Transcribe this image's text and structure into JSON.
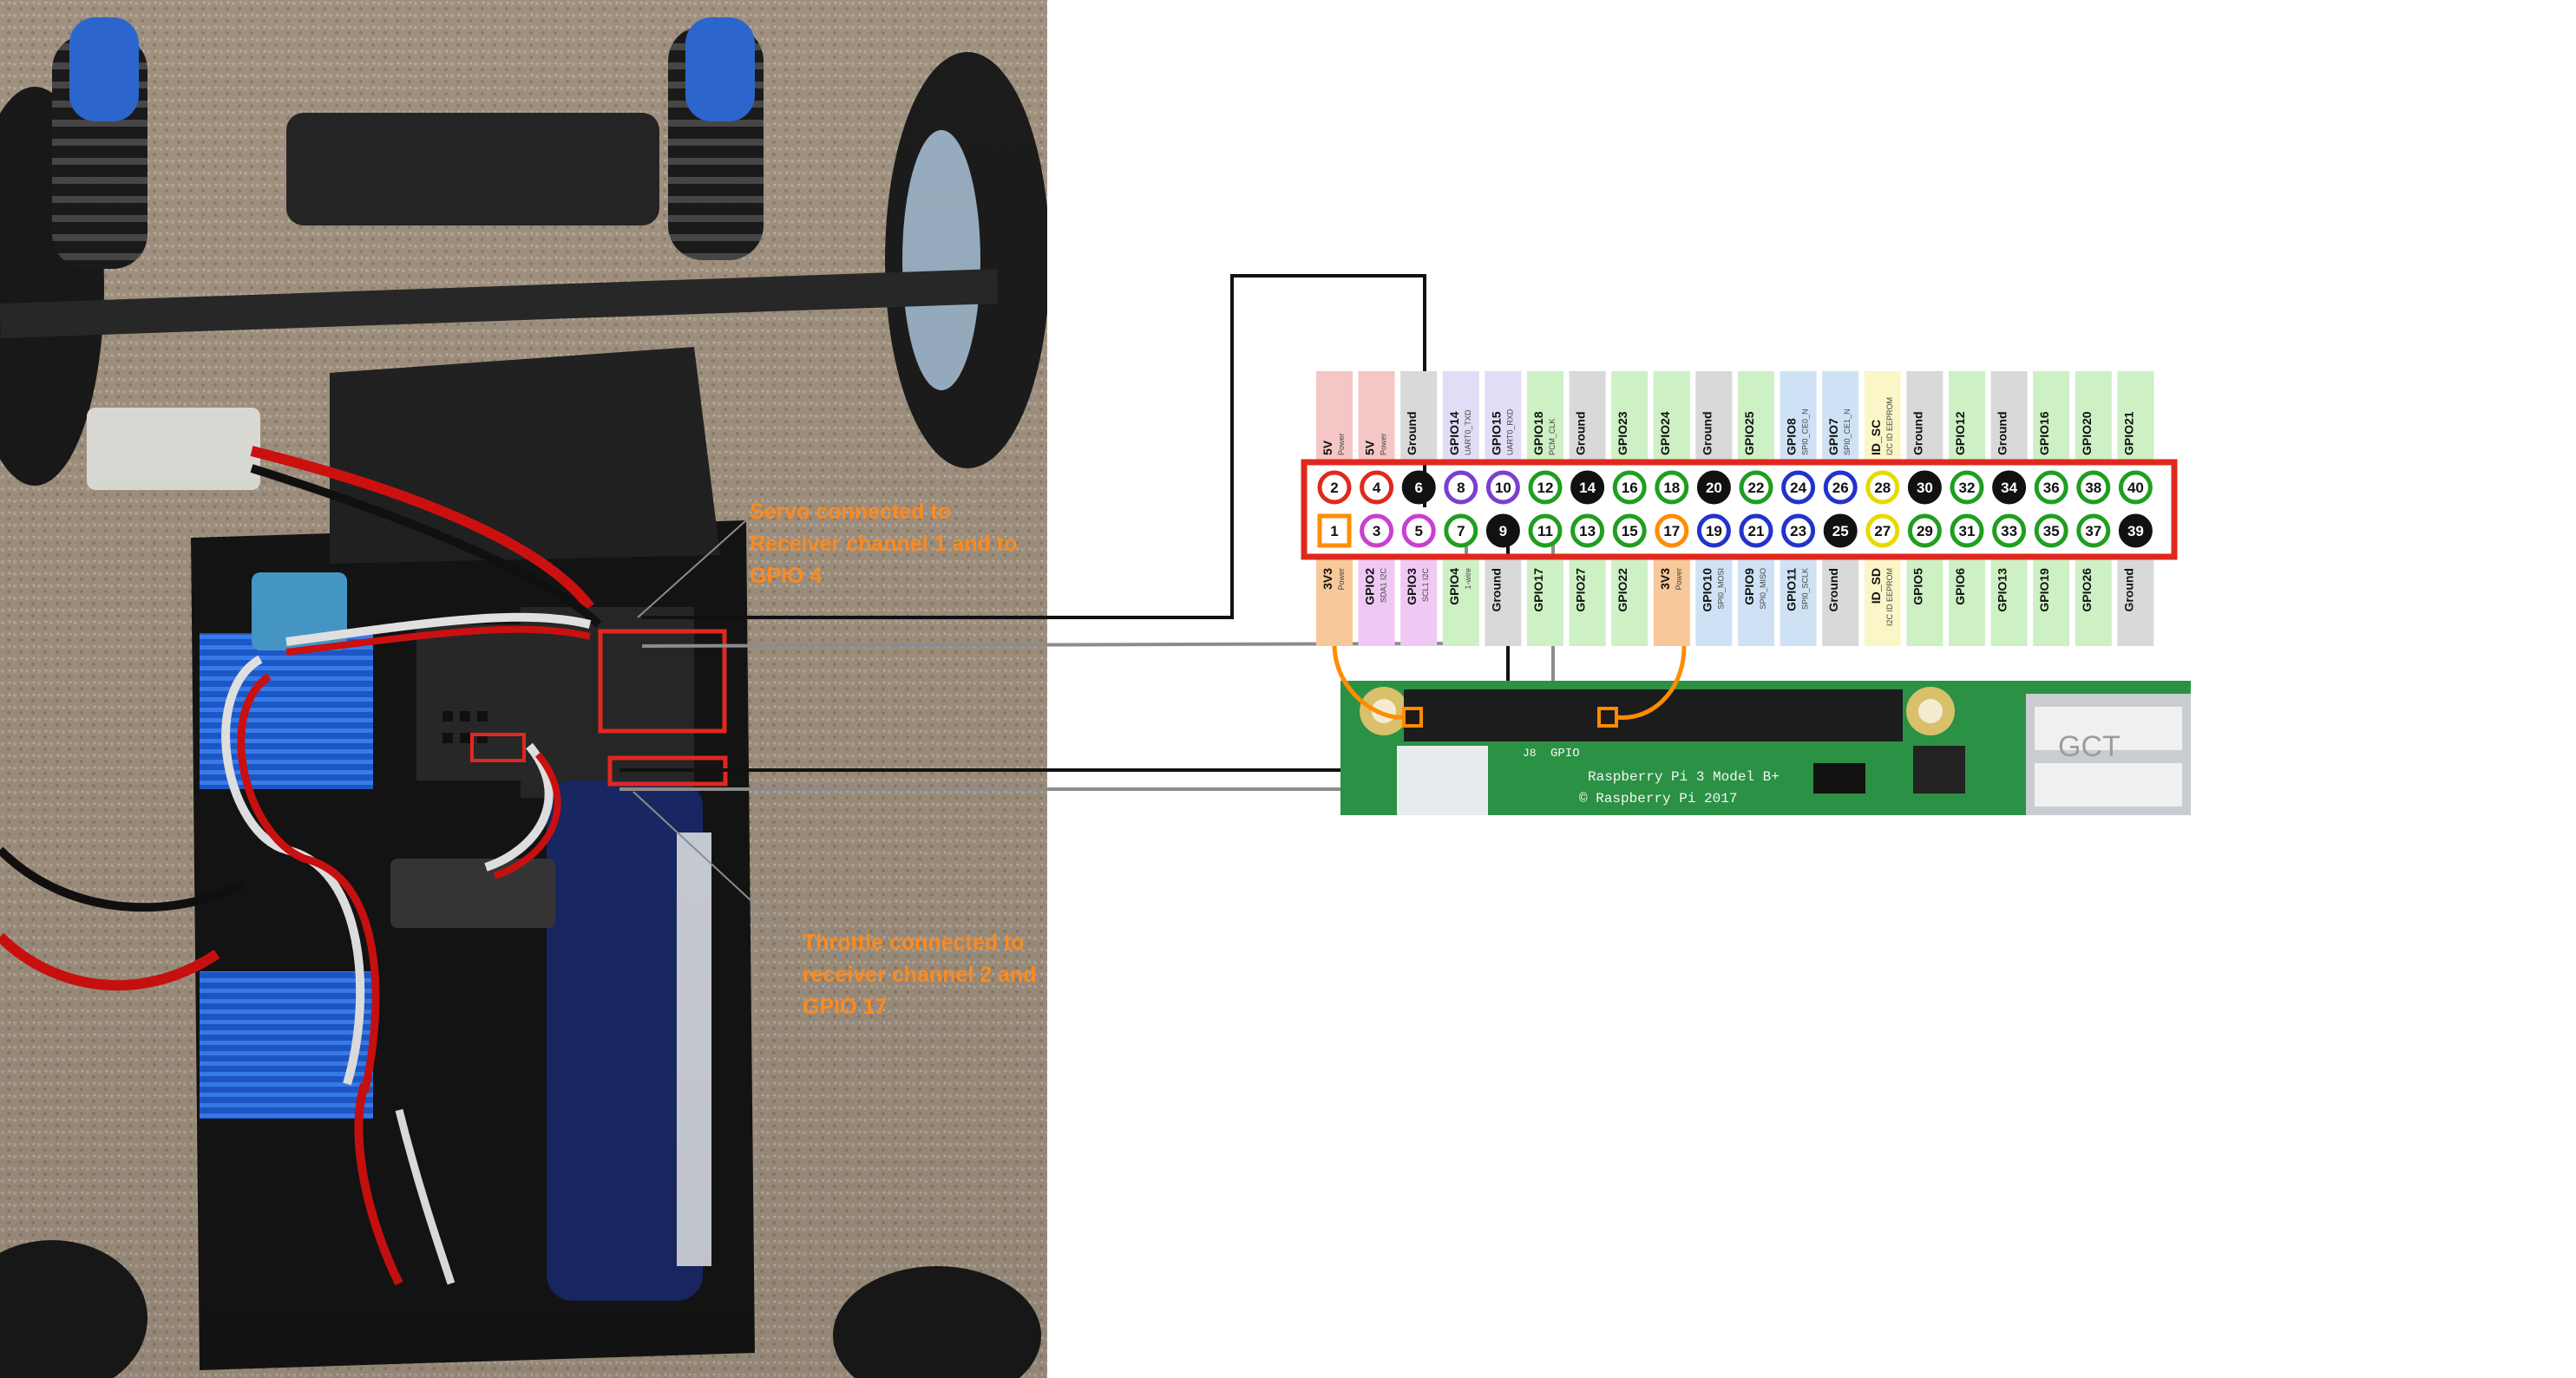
{
  "annotations": {
    "servo": "Servo connected to\nReceiver channel 1 and to\nGPIO 4",
    "throttle": "Throttle connected to\nreceiver channel 2 and\nGPIO 17"
  },
  "board": {
    "model": "Raspberry Pi 3 Model B+",
    "copyright": "© Raspberry Pi 2017",
    "header_label": "GPIO",
    "jack_label": "J8",
    "usb_mark": "GCT"
  },
  "colors": {
    "power5v": "#f5c6c6",
    "power3v3": "#f7c89a",
    "ground": "#d9d9d9",
    "gpio": "#cdf0c5",
    "uart": "#e3dcf6",
    "spi": "#cfe2f5",
    "i2c": "#efc9f3",
    "eeprom": "#fbf6c8",
    "header_border": "#e0281e",
    "annotation": "#ff8a1d",
    "wire_black": "#111111",
    "wire_gray": "#8c8c8c"
  },
  "pins_top": [
    {
      "num": "2",
      "name": "5V",
      "sub": "Power",
      "type": "power5v"
    },
    {
      "num": "4",
      "name": "5V",
      "sub": "Power",
      "type": "power5v"
    },
    {
      "num": "6",
      "name": "Ground",
      "sub": "",
      "type": "ground"
    },
    {
      "num": "8",
      "name": "GPIO14",
      "sub": "UART0_TXD",
      "type": "uart"
    },
    {
      "num": "10",
      "name": "GPIO15",
      "sub": "UART0_RXD",
      "type": "uart"
    },
    {
      "num": "12",
      "name": "GPIO18",
      "sub": "PCM_CLK",
      "type": "gpio"
    },
    {
      "num": "14",
      "name": "Ground",
      "sub": "",
      "type": "ground"
    },
    {
      "num": "16",
      "name": "GPIO23",
      "sub": "",
      "type": "gpio"
    },
    {
      "num": "18",
      "name": "GPIO24",
      "sub": "",
      "type": "gpio"
    },
    {
      "num": "20",
      "name": "Ground",
      "sub": "",
      "type": "ground"
    },
    {
      "num": "22",
      "name": "GPIO25",
      "sub": "",
      "type": "gpio"
    },
    {
      "num": "24",
      "name": "GPIO8",
      "sub": "SPI0_CE0_N",
      "type": "spi"
    },
    {
      "num": "26",
      "name": "GPIO7",
      "sub": "SPI0_CE1_N",
      "type": "spi"
    },
    {
      "num": "28",
      "name": "ID_SC",
      "sub": "I2C ID EEPROM",
      "type": "eeprom"
    },
    {
      "num": "30",
      "name": "Ground",
      "sub": "",
      "type": "ground"
    },
    {
      "num": "32",
      "name": "GPIO12",
      "sub": "",
      "type": "gpio"
    },
    {
      "num": "34",
      "name": "Ground",
      "sub": "",
      "type": "ground"
    },
    {
      "num": "36",
      "name": "GPIO16",
      "sub": "",
      "type": "gpio"
    },
    {
      "num": "38",
      "name": "GPIO20",
      "sub": "",
      "type": "gpio"
    },
    {
      "num": "40",
      "name": "GPIO21",
      "sub": "",
      "type": "gpio"
    }
  ],
  "pins_bottom": [
    {
      "num": "1",
      "name": "3V3",
      "sub": "Power",
      "type": "power3v3"
    },
    {
      "num": "3",
      "name": "GPIO2",
      "sub": "SDA1 I2C",
      "type": "i2c"
    },
    {
      "num": "5",
      "name": "GPIO3",
      "sub": "SCL1 I2C",
      "type": "i2c"
    },
    {
      "num": "7",
      "name": "GPIO4",
      "sub": "1-wire",
      "type": "gpio"
    },
    {
      "num": "9",
      "name": "Ground",
      "sub": "",
      "type": "ground"
    },
    {
      "num": "11",
      "name": "GPIO17",
      "sub": "",
      "type": "gpio"
    },
    {
      "num": "13",
      "name": "GPIO27",
      "sub": "",
      "type": "gpio"
    },
    {
      "num": "15",
      "name": "GPIO22",
      "sub": "",
      "type": "gpio"
    },
    {
      "num": "17",
      "name": "3V3",
      "sub": "Power",
      "type": "power3v3"
    },
    {
      "num": "19",
      "name": "GPIO10",
      "sub": "SPI0_MOSI",
      "type": "spi"
    },
    {
      "num": "21",
      "name": "GPIO9",
      "sub": "SPI0_MISO",
      "type": "spi"
    },
    {
      "num": "23",
      "name": "GPIO11",
      "sub": "SPI0_SCLK",
      "type": "spi"
    },
    {
      "num": "25",
      "name": "Ground",
      "sub": "",
      "type": "ground"
    },
    {
      "num": "27",
      "name": "ID_SD",
      "sub": "I2C ID EEPROM",
      "type": "eeprom"
    },
    {
      "num": "29",
      "name": "GPIO5",
      "sub": "",
      "type": "gpio"
    },
    {
      "num": "31",
      "name": "GPIO6",
      "sub": "",
      "type": "gpio"
    },
    {
      "num": "33",
      "name": "GPIO13",
      "sub": "",
      "type": "gpio"
    },
    {
      "num": "35",
      "name": "GPIO19",
      "sub": "",
      "type": "gpio"
    },
    {
      "num": "37",
      "name": "GPIO26",
      "sub": "",
      "type": "gpio"
    },
    {
      "num": "39",
      "name": "Ground",
      "sub": "",
      "type": "ground"
    }
  ]
}
